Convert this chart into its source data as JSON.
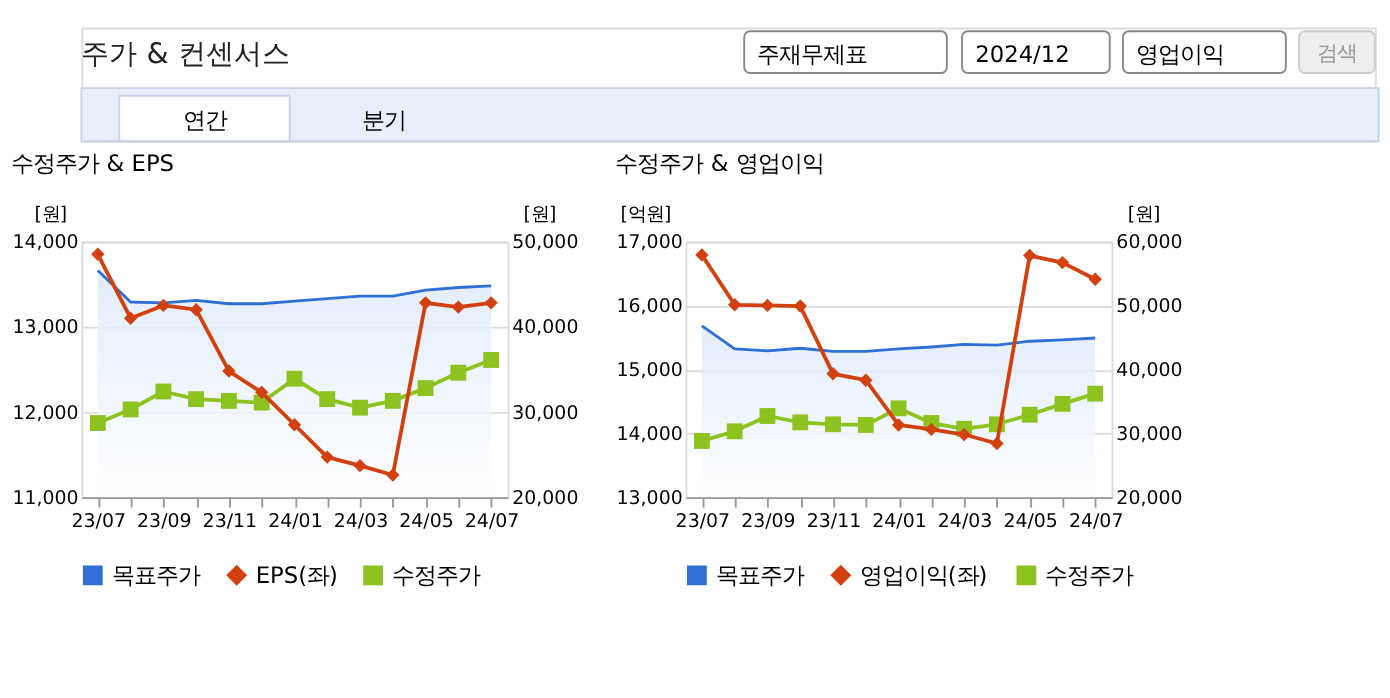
{
  "chart_data": [
    {
      "type": "line",
      "title": "수정주가 & EPS",
      "ylabel": "[원]",
      "y2label": "[원]",
      "annotations": [
        "주가 & 컨센서스",
        "주재무제표",
        "2024/12",
        "영업이익",
        "검색",
        "연간",
        "분기"
      ],
      "categories": [
        "23/07",
        null,
        "23/09",
        null,
        "23/11",
        null,
        "24/01",
        null,
        "24/03",
        null,
        "24/05",
        null,
        "24/07"
      ],
      "series": [
        {
          "name": "목표주가",
          "type": "area",
          "axis": "y2",
          "color": "#2f6fd6",
          "values": [
            46600,
            42900,
            42800,
            43100,
            42700,
            42700,
            43000,
            43300,
            43600,
            43600,
            44300,
            44600,
            44800
          ]
        },
        {
          "name": "EPS(좌)",
          "type": "line",
          "marker": "diamond",
          "color": "#d2400f",
          "values": [
            13850,
            13100,
            13250,
            13200,
            12480,
            12230,
            11850,
            11470,
            11370,
            11260,
            13280,
            13230,
            13280
          ]
        },
        {
          "name": "수정주가",
          "type": "line",
          "axis": "y2",
          "marker": "square",
          "color": "#8dc21f",
          "values": [
            28700,
            30300,
            32400,
            31500,
            31300,
            31100,
            33900,
            31500,
            30500,
            31300,
            32800,
            34600,
            36100
          ]
        }
      ],
      "ylim": [
        11000,
        14000
      ],
      "yticks": [
        {
          "value": 11000,
          "label": "11,000"
        },
        {
          "value": 12000,
          "label": "12,000"
        },
        {
          "value": 13000,
          "label": "13,000"
        },
        {
          "value": 14000,
          "label": "14,000"
        }
      ],
      "y2lim": [
        20000,
        50000
      ],
      "y2ticks": [
        {
          "value": 20000,
          "label": "20,000"
        },
        {
          "value": 30000,
          "label": "30,000"
        },
        {
          "value": 40000,
          "label": "40,000"
        },
        {
          "value": 50000,
          "label": "50,000"
        }
      ],
      "grid": "y",
      "legend": "bottom"
    },
    {
      "type": "line",
      "title": "수정주가 & 영업이익",
      "ylabel": "[억원]",
      "y2label": "[원]",
      "categories": [
        "23/07",
        null,
        "23/09",
        null,
        "23/11",
        null,
        "24/01",
        null,
        "24/03",
        null,
        "24/05",
        null,
        "24/07"
      ],
      "series": [
        {
          "name": "목표주가",
          "type": "area",
          "axis": "y2",
          "color": "#2f6fd6",
          "values": [
            46800,
            43200,
            42900,
            43300,
            42800,
            42800,
            43200,
            43500,
            43900,
            43800,
            44400,
            44600,
            44900
          ]
        },
        {
          "name": "영업이익(좌)",
          "type": "line",
          "marker": "diamond",
          "color": "#d2400f",
          "values": [
            16790,
            16010,
            16000,
            15990,
            14930,
            14830,
            14130,
            14060,
            13980,
            13840,
            16780,
            16670,
            16410
          ]
        },
        {
          "name": "수정주가",
          "type": "line",
          "axis": "y2",
          "marker": "square",
          "color": "#8dc21f",
          "values": [
            28800,
            30300,
            32700,
            31700,
            31400,
            31300,
            33900,
            31600,
            30700,
            31400,
            32900,
            34600,
            36200
          ]
        }
      ],
      "ylim": [
        13000,
        17000
      ],
      "yticks": [
        {
          "value": 13000,
          "label": "13,000"
        },
        {
          "value": 14000,
          "label": "14,000"
        },
        {
          "value": 15000,
          "label": "15,000"
        },
        {
          "value": 16000,
          "label": "16,000"
        },
        {
          "value": 17000,
          "label": "17,000"
        }
      ],
      "y2lim": [
        20000,
        60000
      ],
      "y2ticks": [
        {
          "value": 20000,
          "label": "20,000"
        },
        {
          "value": 30000,
          "label": "30,000"
        },
        {
          "value": 40000,
          "label": "40,000"
        },
        {
          "value": 50000,
          "label": "50,000"
        },
        {
          "value": 60000,
          "label": "60,000"
        }
      ],
      "grid": "y",
      "legend": "bottom"
    }
  ]
}
